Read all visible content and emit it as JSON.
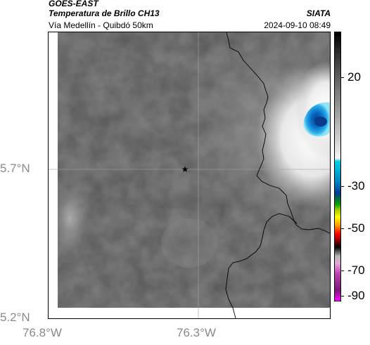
{
  "header": {
    "satellite": "GOES-EAST",
    "product": "Temperatura de Brillo CH13",
    "region": "Vía Medellín - Quibdó 50km",
    "agency": "SIATA",
    "datetime": "2024-09-10 08:49"
  },
  "axes": {
    "lat_labels": [
      "5.7°N",
      "5.2°N"
    ],
    "lon_labels": [
      "76.8°W",
      "76.3°W"
    ]
  },
  "colorbar": {
    "labels": [
      "20",
      "-30",
      "-50",
      "-70",
      "-90"
    ]
  },
  "colors": {
    "cloud_cold": "#0077cc",
    "land_background": "#777777",
    "border_line": "#000000"
  }
}
